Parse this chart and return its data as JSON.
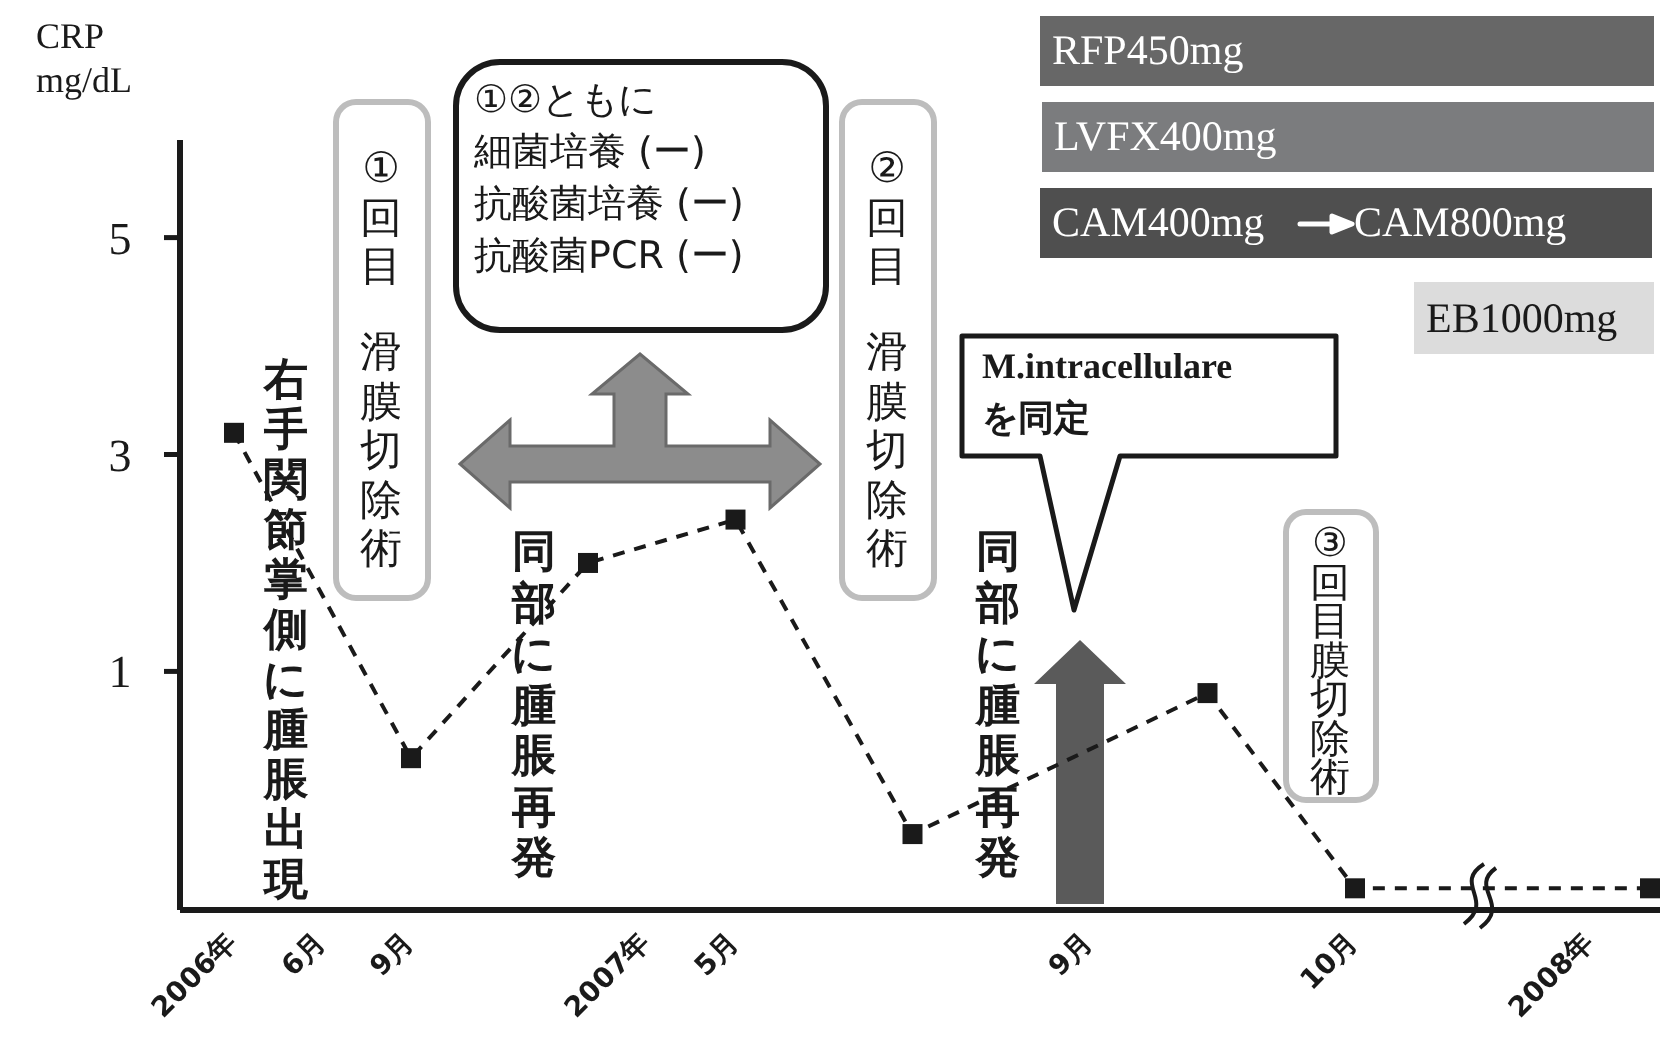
{
  "chart_data": {
    "type": "line",
    "ylabel": "CRP\nmg/dL",
    "categories": [
      "2006年",
      null,
      null,
      "6月",
      null,
      null,
      "9月",
      null,
      null,
      null,
      null,
      null,
      null,
      null,
      "2007年",
      null,
      null,
      "5月",
      null,
      null,
      null,
      null,
      null,
      null,
      null,
      null,
      null,
      null,
      null,
      "9月",
      null,
      null,
      null,
      null,
      null,
      null,
      null,
      null,
      "10月",
      null,
      null,
      null,
      null,
      null,
      null,
      null,
      "2008年",
      null,
      null
    ],
    "values": [
      3.2,
      null,
      null,
      null,
      null,
      null,
      0.2,
      null,
      null,
      null,
      null,
      null,
      2.0,
      null,
      null,
      null,
      null,
      2.4,
      null,
      null,
      null,
      null,
      null,
      -0.5,
      null,
      null,
      null,
      null,
      null,
      null,
      null,
      null,
      null,
      0.8,
      null,
      null,
      null,
      null,
      -1.0,
      null,
      null,
      null,
      null,
      null,
      null,
      null,
      null,
      null,
      -1.0
    ],
    "color": "#1a1a1a",
    "marker": "square",
    "line_style": "dashed",
    "ylim": [
      -1.2,
      5.9
    ],
    "yticks": [
      1,
      3,
      5
    ],
    "annotations": [
      "右手関節掌側に腫脹出現",
      "①回目",
      "滑膜切除術",
      "同部に腫脹再発",
      "①②ともに",
      "細菌培養 (ー)",
      "抗酸菌培養 (ー)",
      "抗酸菌PCR (ー)",
      "②回目",
      "滑膜切除術",
      "同部に腫脹再発",
      "M.intracellulare",
      "を同定",
      "③回目膜切除術",
      "RFP450mg",
      "LVFX400mg",
      "CAM400mg",
      "CAM800mg",
      "EB1000mg"
    ]
  }
}
